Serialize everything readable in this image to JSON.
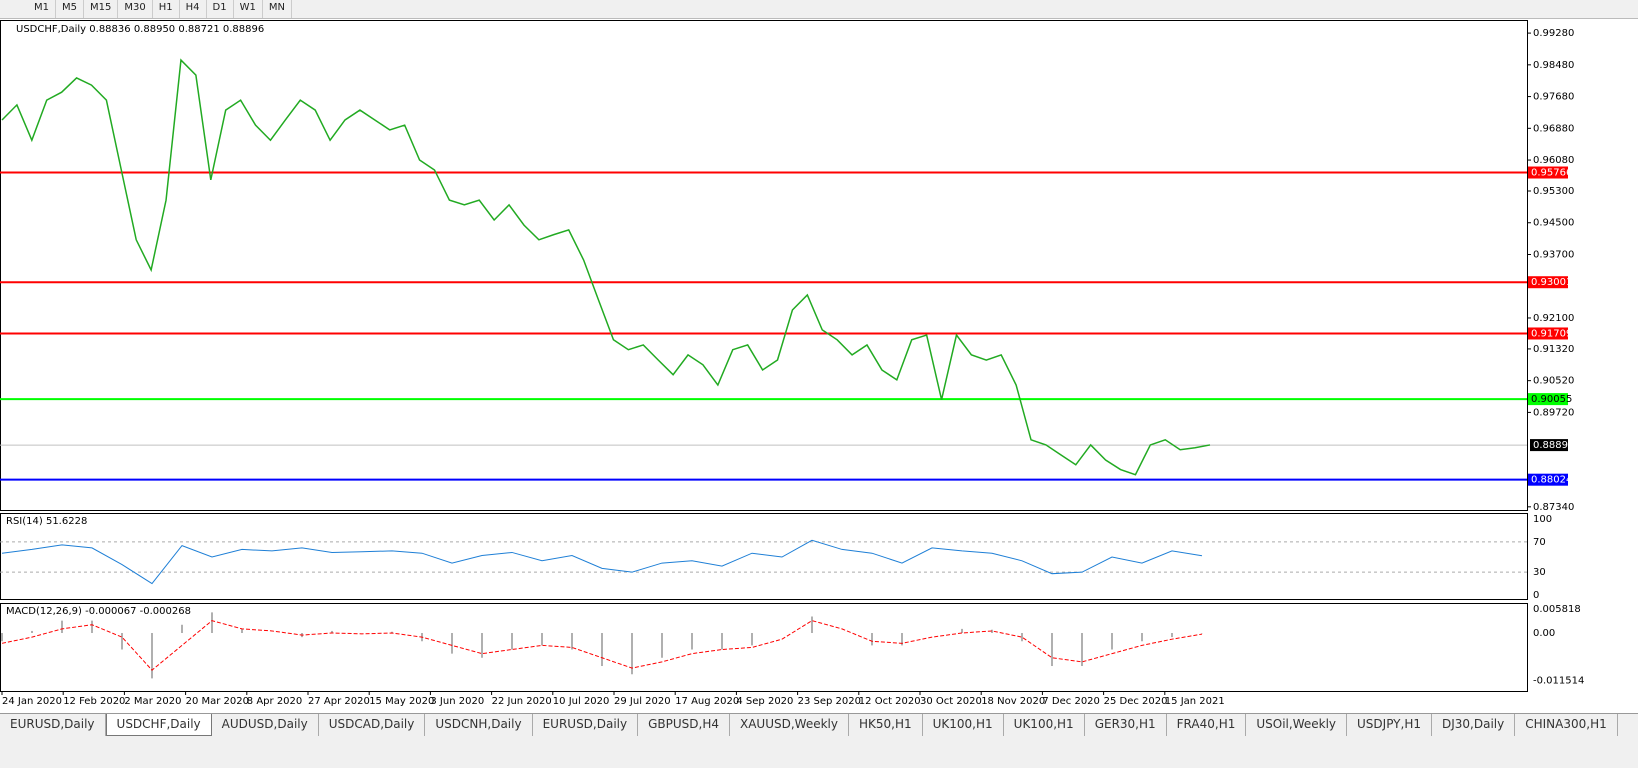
{
  "toolbar": {
    "timeframes": [
      "M1",
      "M5",
      "M15",
      "M30",
      "H1",
      "H4",
      "D1",
      "W1",
      "MN"
    ]
  },
  "chart": {
    "title": "USDCHF,Daily 0.88836 0.88950 0.88721 0.88896",
    "ylim": [
      0.8726,
      0.9961
    ],
    "yticks": [
      {
        "value": 0.9928,
        "label": "0.99280"
      },
      {
        "value": 0.9848,
        "label": "0.98480"
      },
      {
        "value": 0.9768,
        "label": "0.97680"
      },
      {
        "value": 0.9688,
        "label": "0.96880"
      },
      {
        "value": 0.9608,
        "label": "0.96080"
      },
      {
        "value": 0.953,
        "label": "0.95300"
      },
      {
        "value": 0.945,
        "label": "0.94500"
      },
      {
        "value": 0.937,
        "label": "0.93700"
      },
      {
        "value": 0.921,
        "label": "0.92100"
      },
      {
        "value": 0.9132,
        "label": "0.91320"
      },
      {
        "value": 0.9052,
        "label": "0.90520"
      },
      {
        "value": 0.8972,
        "label": "0.89720"
      },
      {
        "value": 0.8734,
        "label": "0.87340"
      }
    ],
    "levels": [
      {
        "value": 0.95766,
        "color": "#ff0000"
      },
      {
        "value": 0.93001,
        "color": "#ff0000"
      },
      {
        "value": 0.91709,
        "color": "#ff0000"
      },
      {
        "value": 0.90055,
        "color": "#00ff00"
      },
      {
        "value": 0.88024,
        "color": "#0000ff"
      }
    ],
    "current_price": 0.88896,
    "dates": [
      "24 Jan 2020",
      "12 Feb 2020",
      "2 Mar 2020",
      "20 Mar 2020",
      "8 Apr 2020",
      "27 Apr 2020",
      "15 May 2020",
      "3 Jun 2020",
      "22 Jun 2020",
      "10 Jul 2020",
      "29 Jul 2020",
      "17 Aug 2020",
      "4 Sep 2020",
      "23 Sep 2020",
      "12 Oct 2020",
      "30 Oct 2020",
      "18 Nov 2020",
      "7 Dec 2020",
      "25 Dec 2020",
      "15 Jan 2021"
    ],
    "close_color": "#22aa22",
    "closes": [
      0.9709,
      0.9747,
      0.9658,
      0.9759,
      0.9779,
      0.9815,
      0.9797,
      0.9759,
      0.9583,
      0.9407,
      0.9331,
      0.9507,
      0.986,
      0.9822,
      0.9558,
      0.9734,
      0.9759,
      0.9696,
      0.9658,
      0.9709,
      0.9759,
      0.9734,
      0.9658,
      0.9709,
      0.9734,
      0.9709,
      0.9684,
      0.9696,
      0.9608,
      0.9583,
      0.9507,
      0.9495,
      0.9507,
      0.9457,
      0.9495,
      0.9444,
      0.9407,
      0.942,
      0.9432,
      0.9356,
      0.9255,
      0.9155,
      0.913,
      0.9142,
      0.9104,
      0.9067,
      0.9117,
      0.9092,
      0.9041,
      0.913,
      0.9142,
      0.9079,
      0.9104,
      0.923,
      0.9268,
      0.918,
      0.9155,
      0.9117,
      0.9142,
      0.9079,
      0.9054,
      0.9155,
      0.9167,
      0.9004,
      0.9167,
      0.9117,
      0.9104,
      0.9117,
      0.9041,
      0.8903,
      0.889,
      0.8865,
      0.884,
      0.889,
      0.8852,
      0.8828,
      0.8815,
      0.889,
      0.8903,
      0.8878,
      0.8883,
      0.889
    ]
  },
  "rsi": {
    "title": "RSI(14) 51.6228",
    "ylim": [
      -6.7,
      106.7
    ],
    "yticks": [
      100,
      70,
      30,
      0
    ],
    "color": "#1e7fd6",
    "values": [
      55,
      60,
      66,
      62,
      40,
      15,
      65,
      50,
      60,
      58,
      62,
      56,
      57,
      58,
      55,
      42,
      52,
      56,
      45,
      52,
      35,
      30,
      42,
      45,
      38,
      55,
      50,
      72,
      60,
      55,
      42,
      62,
      58,
      55,
      45,
      28,
      30,
      50,
      42,
      58,
      51.6228
    ]
  },
  "macd": {
    "title": "MACD(12,26,9) -0.000067 -0.000268",
    "ylim": [
      -0.0143,
      0.00703
    ],
    "yticks": [
      {
        "value": 0.005818,
        "label": "0.005818"
      },
      {
        "value": 0,
        "label": "0.00"
      },
      {
        "value": -0.011514,
        "label": "-0.011514"
      }
    ],
    "histogram": [
      -0.002,
      0.0005,
      0.003,
      0.003,
      -0.004,
      -0.011,
      0.002,
      0.005,
      0.001,
      0,
      -0.001,
      0.0005,
      0,
      0.0003,
      -0.002,
      -0.005,
      -0.006,
      -0.004,
      -0.003,
      -0.004,
      -0.008,
      -0.01,
      -0.006,
      -0.004,
      -0.004,
      -0.003,
      0,
      0.004,
      0,
      -0.003,
      -0.003,
      0,
      0.001,
      0.0008,
      -0.002,
      -0.008,
      -0.008,
      -0.004,
      -0.002,
      -0.001,
      -6.7e-05
    ],
    "signal": [
      -0.0025,
      -0.001,
      0.001,
      0.002,
      -0.001,
      -0.009,
      -0.003,
      0.003,
      0.001,
      0.0005,
      -0.0005,
      0,
      -0.0002,
      0,
      -0.001,
      -0.003,
      -0.005,
      -0.004,
      -0.003,
      -0.0035,
      -0.006,
      -0.0085,
      -0.007,
      -0.005,
      -0.004,
      -0.0035,
      -0.0015,
      0.003,
      0.001,
      -0.002,
      -0.0025,
      -0.001,
      0,
      0.0005,
      -0.001,
      -0.006,
      -0.007,
      -0.005,
      -0.003,
      -0.0015,
      -0.000268
    ],
    "signal_color": "#ff0000"
  },
  "tabs": {
    "active": 1,
    "items": [
      "EURUSD,Daily",
      "USDCHF,Daily",
      "AUDUSD,Daily",
      "USDCAD,Daily",
      "USDCNH,Daily",
      "EURUSD,Daily",
      "GBPUSD,H4",
      "XAUUSD,Weekly",
      "HK50,H1",
      "UK100,H1",
      "UK100,H1",
      "GER30,H1",
      "FRA40,H1",
      "USOil,Weekly",
      "USDJPY,H1",
      "DJ30,Daily",
      "CHINA300,H1"
    ]
  }
}
